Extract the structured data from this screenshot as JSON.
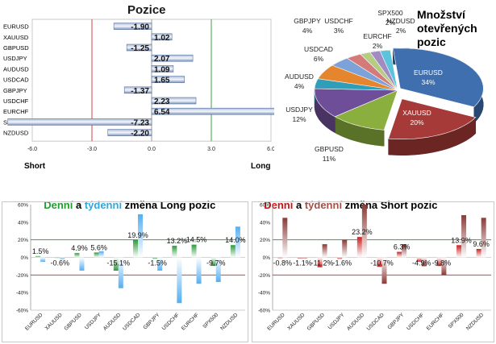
{
  "pozice": {
    "title": "Pozice",
    "axis_left": "Short",
    "axis_right": "Long"
  },
  "pie": {
    "title_line1": "Množství",
    "title_line2": "otevřených",
    "title_line3": "pozic"
  },
  "long_title": {
    "part1": "Denní",
    "part2": " a ",
    "part3": "týdenní",
    "part4": " změna Long pozic"
  },
  "short_title": {
    "part1": "Denní",
    "part2": " a ",
    "part3": "týdenní",
    "part4": " změna Short pozic"
  },
  "colors": {
    "green_title": "#1f9f2f",
    "blue_title": "#2ea8e0",
    "red_title": "#d01010",
    "brown_title": "#a0524a"
  },
  "chart_data": [
    {
      "type": "bar",
      "orientation": "horizontal",
      "title": "Pozice",
      "categories": [
        "EURUSD",
        "XAUUSD",
        "GBPUSD",
        "USDJPY",
        "AUDUSD",
        "USDCAD",
        "GBPJPY",
        "USDCHF",
        "EURCHF",
        "SPX500",
        "NZDUSD"
      ],
      "values": [
        -1.9,
        1.02,
        -1.25,
        2.07,
        1.09,
        1.65,
        -1.37,
        2.23,
        6.54,
        -7.23,
        -2.2
      ],
      "value_labels": [
        "-1.90",
        "1.02",
        "-1.25",
        "2.07",
        "1.09",
        "1.65",
        "-1.37",
        "2.23",
        "6.54",
        "-7.23",
        "-2.20"
      ],
      "xlim": [
        -6.0,
        6.0
      ],
      "ticks": [
        "-6.0",
        "-3.0",
        "0.0",
        "3.0",
        "6.0"
      ],
      "tick_values": [
        -6,
        -3,
        0,
        3,
        6
      ],
      "reference_lines": [
        {
          "value": -3.0,
          "color": "#d04040"
        },
        {
          "value": 3.0,
          "color": "#40a040"
        }
      ],
      "bar_color": "#6e87b4"
    },
    {
      "type": "pie",
      "title": "Množství otevřených pozic",
      "slices": [
        {
          "label": "EURUSD",
          "pct": "34%",
          "value": 34,
          "color": "#3f6fae"
        },
        {
          "label": "XAUUSD",
          "pct": "20%",
          "value": 20,
          "color": "#a53a38"
        },
        {
          "label": "GBPUSD",
          "pct": "11%",
          "value": 11,
          "color": "#8aaf3e"
        },
        {
          "label": "USDJPY",
          "pct": "12%",
          "value": 12,
          "color": "#6e4e99"
        },
        {
          "label": "AUDUSD",
          "pct": "4%",
          "value": 4,
          "color": "#2f9fb9"
        },
        {
          "label": "USDCAD",
          "pct": "6%",
          "value": 6,
          "color": "#e5862e"
        },
        {
          "label": "GBPJPY",
          "pct": "4%",
          "value": 4,
          "color": "#7da2d8"
        },
        {
          "label": "USDCHF",
          "pct": "3%",
          "value": 3,
          "color": "#d47a78"
        },
        {
          "label": "EURCHF",
          "pct": "2%",
          "value": 2,
          "color": "#b5cd82"
        },
        {
          "label": "SPX500",
          "pct": "2%",
          "value": 2,
          "color": "#a08cc0"
        },
        {
          "label": "NZDUSD",
          "pct": "2%",
          "value": 2,
          "color": "#5bc3dc"
        }
      ]
    },
    {
      "type": "bar",
      "title": "Denní a týdenní změna Long pozic",
      "categories": [
        "EURUSD",
        "XAUUSD",
        "GBPUSD",
        "USDJPY",
        "AUDUSD",
        "USDCAD",
        "GBPJPY",
        "USDCHF",
        "EURCHF",
        "SPX500",
        "NZDUSD"
      ],
      "series": [
        {
          "values": [
            1.5,
            -0.6,
            4.9,
            5.6,
            -15.1,
            19.9,
            -1.5,
            13.2,
            14.5,
            -9.7,
            14.0
          ],
          "color": "#2f9a3c"
        },
        {
          "values": [
            -5.0,
            -2.0,
            -15.0,
            7.0,
            -35.0,
            49.0,
            -15.0,
            -52.0,
            -30.0,
            -28.0,
            35.0
          ],
          "color": "#55aef0"
        }
      ],
      "data_labels": [
        "1.5%",
        "-0.6%",
        "4.9%",
        "5.6%",
        "-15.1%",
        "19.9%",
        "-1.5%",
        "13.2%",
        "14.5%",
        "-9.7%",
        "14.0%"
      ],
      "ylim": [
        -60,
        60
      ],
      "ticks": [
        "60%",
        "40%",
        "20%",
        "0%",
        "-20%",
        "-40%",
        "-60%"
      ],
      "tick_values": [
        60,
        40,
        20,
        0,
        -20,
        -40,
        -60
      ],
      "reference_lines": [
        {
          "value": 20,
          "color": "#40a040"
        },
        {
          "value": -20,
          "color": "#d04040"
        }
      ]
    },
    {
      "type": "bar",
      "title": "Denní a týdenní změna Short pozic",
      "categories": [
        "EURUSD",
        "XAUUSD",
        "GBPUSD",
        "USDJPY",
        "AUDUSD",
        "USDCAD",
        "GBPJPY",
        "USDCHF",
        "EURCHF",
        "SPX500",
        "NZDUSD"
      ],
      "series": [
        {
          "values": [
            -0.8,
            -1.1,
            -11.2,
            -1.6,
            23.2,
            -10.7,
            6.3,
            -4.9,
            -9.8,
            13.9,
            9.6
          ],
          "color": "#cc1f1f"
        },
        {
          "values": [
            45,
            -1,
            15,
            20,
            60,
            -30,
            15,
            -10,
            -20,
            48,
            45
          ],
          "color": "#8a3a36"
        }
      ],
      "data_labels": [
        "-0.8%",
        "-1.1%",
        "-11.2%",
        "-1.6%",
        "23.2%",
        "-10.7%",
        "6.3%",
        "-4.9%",
        "-9.8%",
        "13.9%",
        "9.6%"
      ],
      "ylim": [
        -60,
        60
      ],
      "ticks": [
        "60%",
        "40%",
        "20%",
        "0%",
        "-20%",
        "-40%",
        "-60%"
      ],
      "tick_values": [
        60,
        40,
        20,
        0,
        -20,
        -40,
        -60
      ],
      "reference_lines": [
        {
          "value": 20,
          "color": "#40a040"
        },
        {
          "value": -20,
          "color": "#d04040"
        }
      ]
    }
  ]
}
